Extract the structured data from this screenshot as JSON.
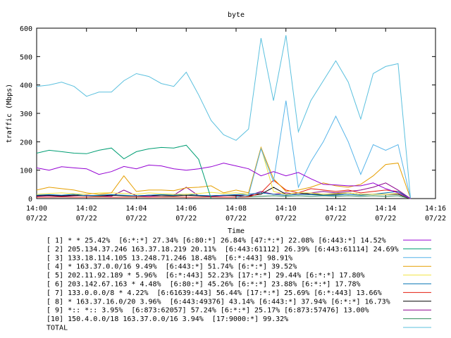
{
  "chart_data": {
    "type": "line",
    "title": "byte",
    "xlabel": "Time",
    "ylabel": "traffic (Mbps)",
    "ylim": [
      0,
      600
    ],
    "yticks": [
      "0",
      "100",
      "200",
      "300",
      "400",
      "500",
      "600"
    ],
    "xticks": [
      {
        "time": "14:00",
        "date": "07/22"
      },
      {
        "time": "14:02",
        "date": "07/22"
      },
      {
        "time": "14:04",
        "date": "07/22"
      },
      {
        "time": "14:06",
        "date": "07/22"
      },
      {
        "time": "14:08",
        "date": "07/22"
      },
      {
        "time": "14:10",
        "date": "07/22"
      },
      {
        "time": "14:12",
        "date": "07/22"
      },
      {
        "time": "14:14",
        "date": "07/22"
      },
      {
        "time": "14:16",
        "date": "07/22"
      }
    ],
    "xlim": [
      "14:00",
      "14:16"
    ],
    "x": [
      "14:00:00",
      "14:00:30",
      "14:01:00",
      "14:01:30",
      "14:02:00",
      "14:02:30",
      "14:03:00",
      "14:03:30",
      "14:04:00",
      "14:04:30",
      "14:05:00",
      "14:05:30",
      "14:06:00",
      "14:06:30",
      "14:07:00",
      "14:07:30",
      "14:08:00",
      "14:08:30",
      "14:09:00",
      "14:09:30",
      "14:10:00",
      "14:10:30",
      "14:11:00",
      "14:11:30",
      "14:12:00",
      "14:12:30",
      "14:13:00",
      "14:13:30",
      "14:14:00",
      "14:14:30",
      "14:15:00"
    ],
    "legend_position": "bottom",
    "series": [
      {
        "name": "[ 1] * * 25.42%  [6:*:*] 27.34% [6:80:*] 26.84% [47:*:*] 22.08% [6:443:*] 14.52%",
        "color": "#9400d3",
        "values": [
          108,
          100,
          112,
          108,
          105,
          85,
          95,
          113,
          105,
          118,
          115,
          105,
          100,
          105,
          112,
          125,
          115,
          105,
          80,
          95,
          80,
          92,
          70,
          50,
          48,
          45,
          45,
          55,
          35,
          20,
          0
        ]
      },
      {
        "name": "[ 2] 205.134.37.246 163.37.18.219 20.11%  [6:443:61112] 26.39% [6:443:61114] 24.69%",
        "color": "#009e73",
        "values": [
          160,
          170,
          165,
          160,
          158,
          170,
          178,
          140,
          165,
          175,
          180,
          178,
          188,
          138,
          0,
          null,
          null,
          null,
          null,
          null,
          null,
          null,
          null,
          null,
          null,
          null,
          null,
          null,
          null,
          null,
          null
        ]
      },
      {
        "name": "[ 3] 133.18.114.105 13.248.71.246 18.48%  [6:*:443] 98.91%",
        "color": "#56b4e9",
        "values": [
          null,
          null,
          null,
          null,
          null,
          null,
          null,
          null,
          null,
          null,
          null,
          null,
          null,
          null,
          null,
          null,
          5,
          12,
          175,
          60,
          345,
          40,
          130,
          200,
          290,
          200,
          85,
          190,
          170,
          190,
          0
        ]
      },
      {
        "name": "[ 4] * 163.37.0.0/16 9.49%  [6:443:*] 51.74% [6:*:*] 39.52%",
        "color": "#e69f00",
        "values": [
          30,
          40,
          35,
          30,
          20,
          15,
          20,
          80,
          25,
          30,
          30,
          28,
          38,
          40,
          45,
          20,
          30,
          20,
          180,
          70,
          25,
          30,
          40,
          55,
          45,
          40,
          50,
          80,
          120,
          125,
          0
        ]
      },
      {
        "name": "[ 5] 202.11.92.189 * 5.96%  [6:*:443] 52.23% [17:*:*] 29.44% [6:*:*] 17.80%",
        "color": "#f0e442",
        "values": [
          15,
          18,
          20,
          17,
          15,
          20,
          20,
          18,
          15,
          20,
          17,
          15,
          15,
          18,
          22,
          18,
          20,
          15,
          180,
          25,
          15,
          20,
          20,
          15,
          18,
          20,
          15,
          15,
          15,
          18,
          0
        ]
      },
      {
        "name": "[ 6] 203.142.67.163 * 4.48%  [6:80:*] 45.26% [6:*:*] 23.88% [6:*:*] 17.78%",
        "color": "#0072b2",
        "values": [
          12,
          14,
          12,
          15,
          10,
          12,
          14,
          12,
          10,
          12,
          14,
          12,
          15,
          12,
          10,
          12,
          14,
          15,
          20,
          15,
          12,
          15,
          14,
          12,
          12,
          15,
          12,
          15,
          20,
          25,
          0
        ]
      },
      {
        "name": "[ 7] 133.0.0.0/8 * 4.22%  [6:61639:443] 56.44% [17:*:*] 25.69% [6:*:443] 13.66%",
        "color": "#e51e10",
        "values": [
          5,
          5,
          6,
          5,
          5,
          6,
          5,
          5,
          6,
          5,
          5,
          6,
          5,
          5,
          6,
          5,
          5,
          6,
          20,
          65,
          30,
          20,
          35,
          30,
          25,
          30,
          20,
          25,
          30,
          25,
          0
        ]
      },
      {
        "name": "[ 8] * 163.37.16.0/20 3.96%  [6:443:49376] 43.14% [6:443:*] 37.94% [6:*:*] 16.73%",
        "color": "#000000",
        "values": [
          10,
          12,
          10,
          12,
          10,
          10,
          12,
          10,
          10,
          12,
          10,
          10,
          12,
          10,
          10,
          12,
          10,
          10,
          15,
          40,
          15,
          20,
          15,
          15,
          15,
          20,
          15,
          15,
          15,
          15,
          0
        ]
      },
      {
        "name": "[ 9] *:: *:: 3.95%  [6:873:62057] 57.24% [6:*:*] 25.17% [6:873:57476] 13.00%",
        "color": "#8b008b",
        "values": [
          8,
          10,
          8,
          10,
          12,
          10,
          8,
          30,
          10,
          8,
          10,
          12,
          40,
          10,
          8,
          10,
          12,
          10,
          25,
          15,
          20,
          15,
          20,
          25,
          20,
          25,
          30,
          40,
          55,
          30,
          0
        ]
      },
      {
        "name": "[10] 150.4.0.0/18 163.37.0.0/16 3.94%  [17:9000:*] 99.32%",
        "color": "#2e8b57",
        "values": [
          5,
          5,
          6,
          5,
          5,
          6,
          5,
          5,
          6,
          5,
          5,
          6,
          5,
          5,
          6,
          5,
          5,
          6,
          8,
          10,
          8,
          10,
          8,
          10,
          8,
          10,
          8,
          10,
          8,
          10,
          0
        ]
      },
      {
        "name": "TOTAL",
        "color": "#5bc0de",
        "values": [
          395,
          400,
          410,
          395,
          360,
          375,
          375,
          415,
          440,
          430,
          405,
          395,
          445,
          365,
          275,
          225,
          205,
          245,
          565,
          345,
          575,
          235,
          345,
          415,
          485,
          410,
          280,
          440,
          465,
          475,
          0
        ]
      }
    ]
  }
}
